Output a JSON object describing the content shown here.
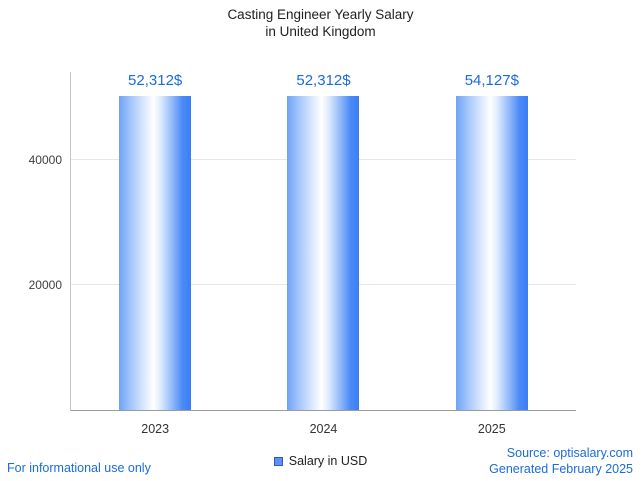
{
  "title": {
    "line1": "Casting Engineer Yearly Salary",
    "line2": "in United Kingdom"
  },
  "chart_data": {
    "type": "bar",
    "title": "Casting Engineer Yearly Salary in United Kingdom",
    "categories": [
      "2023",
      "2024",
      "2025"
    ],
    "values": [
      52312,
      52312,
      54127
    ],
    "value_labels": [
      "52,312$",
      "52,312$",
      "54,127$"
    ],
    "xlabel": "",
    "ylabel": "",
    "ylim": [
      0,
      54127
    ],
    "yticks": [
      {
        "label": "20000",
        "value": 20000
      },
      {
        "label": "40000",
        "value": 40000
      }
    ],
    "grid": true,
    "legend_position": "bottom",
    "legend": [
      {
        "label": "Salary in USD",
        "color": "#5b8ff9"
      }
    ]
  },
  "footer": {
    "disclaimer": "For informational use only",
    "source": "Source: optisalary.com",
    "generated": "Generated February 2025"
  },
  "colors": {
    "value_label": "#1a6bdd",
    "footer_text": "#1a6bdd",
    "bar_accent": "#3d7df5"
  }
}
